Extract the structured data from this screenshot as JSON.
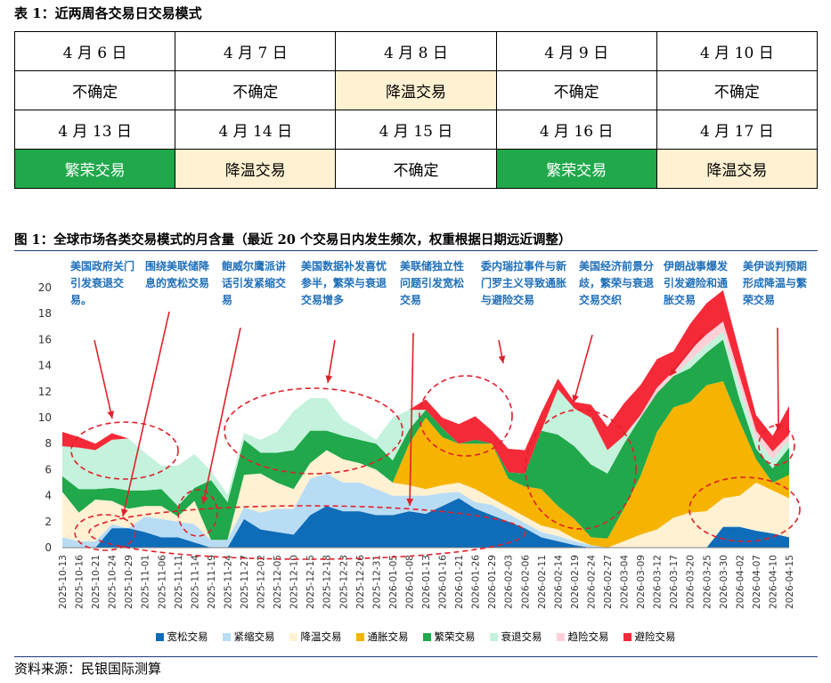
{
  "table": {
    "title": "表 1：近两周各交易日交易模式",
    "rows": [
      {
        "dates": [
          "4 月 6 日",
          "4 月 7 日",
          "4 月 8 日",
          "4 月 9 日",
          "4 月 10 日"
        ],
        "modes": [
          "不确定",
          "不确定",
          "降温交易",
          "不确定",
          "不确定"
        ]
      },
      {
        "dates": [
          "4 月 13 日",
          "4 月 14 日",
          "4 月 15 日",
          "4 月 16 日",
          "4 月 17 日"
        ],
        "modes": [
          "繁荣交易",
          "降温交易",
          "不确定",
          "繁荣交易",
          "降温交易"
        ]
      }
    ],
    "mode_colors": {
      "繁荣交易": "#20a84b",
      "降温交易": "#fff1d2",
      "不确定": "#ffffff"
    }
  },
  "figure": {
    "title": "图 1：全球市场各类交易模式的月含量（最近 20 个交易日内发生频次，权重根据日期远近调整）",
    "source": "资料来源：民银国际测算"
  },
  "annotations": [
    "美国政府关门引发衰退交易。",
    "围绕美联储降息的宽松交易",
    "鲍威尔鹰派讲话引发紧缩交易",
    "美国数据补发喜忧参半，繁荣与衰退交易增多",
    "美联储独立性问题引发宽松交易",
    "委内瑞拉事件与新门罗主义导致通胀与避险交易",
    "美国经济前景分歧，繁荣与衰退交易交织",
    "伊朗战事爆发引发避险和通胀交易",
    "美伊谈判预期形成降温与繁荣交易"
  ],
  "chart_data": {
    "type": "area",
    "stacked": true,
    "ylim": [
      0,
      20
    ],
    "yticks": [
      0,
      2,
      4,
      6,
      8,
      10,
      12,
      14,
      16,
      18,
      20
    ],
    "xtick_labels": [
      "2025-10-13",
      "2025-10-16",
      "2025-10-21",
      "2025-10-24",
      "2025-10-29",
      "2025-11-01",
      "2025-11-06",
      "2025-11-11",
      "2025-11-14",
      "2025-11-19",
      "2025-11-24",
      "2025-11-27",
      "2025-12-02",
      "2025-12-05",
      "2025-12-10",
      "2025-12-15",
      "2025-12-18",
      "2025-12-23",
      "2025-12-26",
      "2025-12-31",
      "2026-01-05",
      "2026-01-08",
      "2026-01-13",
      "2026-01-16",
      "2026-01-21",
      "2026-01-26",
      "2026-01-29",
      "2026-02-03",
      "2026-02-06",
      "2026-02-11",
      "2026-02-14",
      "2026-02-19",
      "2026-02-24",
      "2026-02-27",
      "2026-03-04",
      "2026-03-09",
      "2026-03-12",
      "2026-03-17",
      "2026-03-20",
      "2026-03-25",
      "2026-03-30",
      "2026-04-02",
      "2026-04-07",
      "2026-04-10",
      "2026-04-15"
    ],
    "series": [
      {
        "name": "宽松交易",
        "color": "#0e6cb8",
        "values": [
          0,
          0,
          0,
          1.5,
          1.5,
          1.2,
          0.8,
          0.8,
          0.4,
          0,
          0,
          2.2,
          1.4,
          1.2,
          1,
          2.5,
          3.2,
          2.8,
          2.8,
          2.5,
          2.5,
          2.8,
          2.6,
          3.2,
          3.8,
          3,
          2.5,
          2,
          1.5,
          0.8,
          0.5,
          0.2,
          0,
          0,
          0,
          0,
          0,
          0,
          0,
          0,
          1.6,
          1.6,
          1.3,
          1.1,
          0.8
        ]
      },
      {
        "name": "紧缩交易",
        "color": "#b9dcf5",
        "values": [
          0.8,
          0.5,
          0.5,
          0.3,
          0,
          1.2,
          1.4,
          1.2,
          1.4,
          0.6,
          0.6,
          0.9,
          1.3,
          1.8,
          2,
          2.8,
          2.5,
          2.2,
          2.2,
          2,
          1.5,
          1.2,
          1.4,
          1,
          0.5,
          0.5,
          0.8,
          0.6,
          0.4,
          0.4,
          0.4,
          0.3,
          0.2,
          0,
          0,
          0,
          0,
          0,
          0,
          0,
          0,
          0,
          0,
          0,
          0
        ]
      },
      {
        "name": "降温交易",
        "color": "#fff1d2",
        "values": [
          3.5,
          2.2,
          3.2,
          1.8,
          1.5,
          0.8,
          1,
          0.4,
          1.8,
          0,
          0,
          2.5,
          3,
          2,
          1.5,
          1.2,
          1.8,
          1.8,
          1.5,
          1.5,
          1,
          0.8,
          0.5,
          0.6,
          0.7,
          1,
          0.5,
          0.5,
          0.5,
          0.5,
          0.5,
          0.2,
          0,
          0,
          0.5,
          1,
          1.4,
          2.3,
          2.7,
          2.8,
          2.2,
          2.4,
          3.7,
          3.3,
          3
        ]
      },
      {
        "name": "通胀交易",
        "color": "#f6b400",
        "values": [
          0,
          0,
          0,
          0,
          0,
          0,
          0,
          0,
          0,
          0,
          0,
          0,
          0,
          0,
          0,
          0,
          0,
          0,
          0,
          0,
          0,
          3.2,
          5.5,
          3.7,
          3,
          3.5,
          4.2,
          2.2,
          2.3,
          2.8,
          1.8,
          1.5,
          0.6,
          0.7,
          2.5,
          4.5,
          7.5,
          8.5,
          8.5,
          9.7,
          9,
          5.7,
          1.8,
          0.6,
          1.8
        ]
      },
      {
        "name": "繁荣交易",
        "color": "#20a84b",
        "values": [
          1.2,
          1.8,
          0.8,
          1,
          1.4,
          1.2,
          1.3,
          0.8,
          1,
          4.6,
          2.9,
          2.7,
          1.6,
          2.3,
          3,
          2.5,
          1.5,
          1.8,
          1.8,
          2,
          1.7,
          1.1,
          0.6,
          0.7,
          0,
          0.3,
          0,
          0.5,
          1,
          4.5,
          5.5,
          5.6,
          5.6,
          5,
          5,
          4.5,
          3,
          2.4,
          2.6,
          2.5,
          3.2,
          1.7,
          0.8,
          1.1,
          2.1
        ]
      },
      {
        "name": "衰退交易",
        "color": "#c4f2dc",
        "values": [
          2.3,
          3.2,
          3,
          3.7,
          4,
          2.9,
          1.8,
          3.1,
          2.6,
          0.7,
          0.6,
          0.5,
          1,
          1.6,
          3,
          2.5,
          2.5,
          1.2,
          0.8,
          0.3,
          3.3,
          1.5,
          0,
          0,
          0,
          0,
          0,
          0,
          0,
          0,
          3.5,
          2.9,
          3.6,
          1.8,
          0.6,
          0,
          0,
          0,
          0.6,
          0.6,
          0.6,
          1,
          0.8,
          0.7,
          0.6
        ]
      },
      {
        "name": "趋险交易",
        "color": "#ffd0d8",
        "values": [
          0,
          0,
          0,
          0,
          0,
          0,
          0,
          0,
          0,
          0,
          0,
          0,
          0,
          0,
          0,
          0,
          0,
          0,
          0,
          0,
          0,
          0,
          0,
          0,
          0,
          0,
          0,
          0,
          0,
          0,
          0,
          0,
          0,
          0,
          0,
          0.2,
          0.4,
          0.4,
          0.8,
          0.8,
          0.8,
          0.8,
          0.6,
          0.6,
          0.4
        ]
      },
      {
        "name": "避险交易",
        "color": "#f52a38",
        "values": [
          1.1,
          0.8,
          0.5,
          0.5,
          0,
          0,
          0,
          0,
          0,
          0,
          0,
          0,
          0,
          0,
          0,
          0,
          0,
          0,
          0,
          0,
          0,
          0,
          0.8,
          0.8,
          1.5,
          1.8,
          1,
          1.8,
          1.8,
          1.4,
          0.8,
          0.5,
          1,
          1.8,
          2.5,
          2.3,
          2.2,
          1.5,
          2,
          2.4,
          2.4,
          1.8,
          1.2,
          1.2,
          2.2
        ]
      }
    ]
  }
}
